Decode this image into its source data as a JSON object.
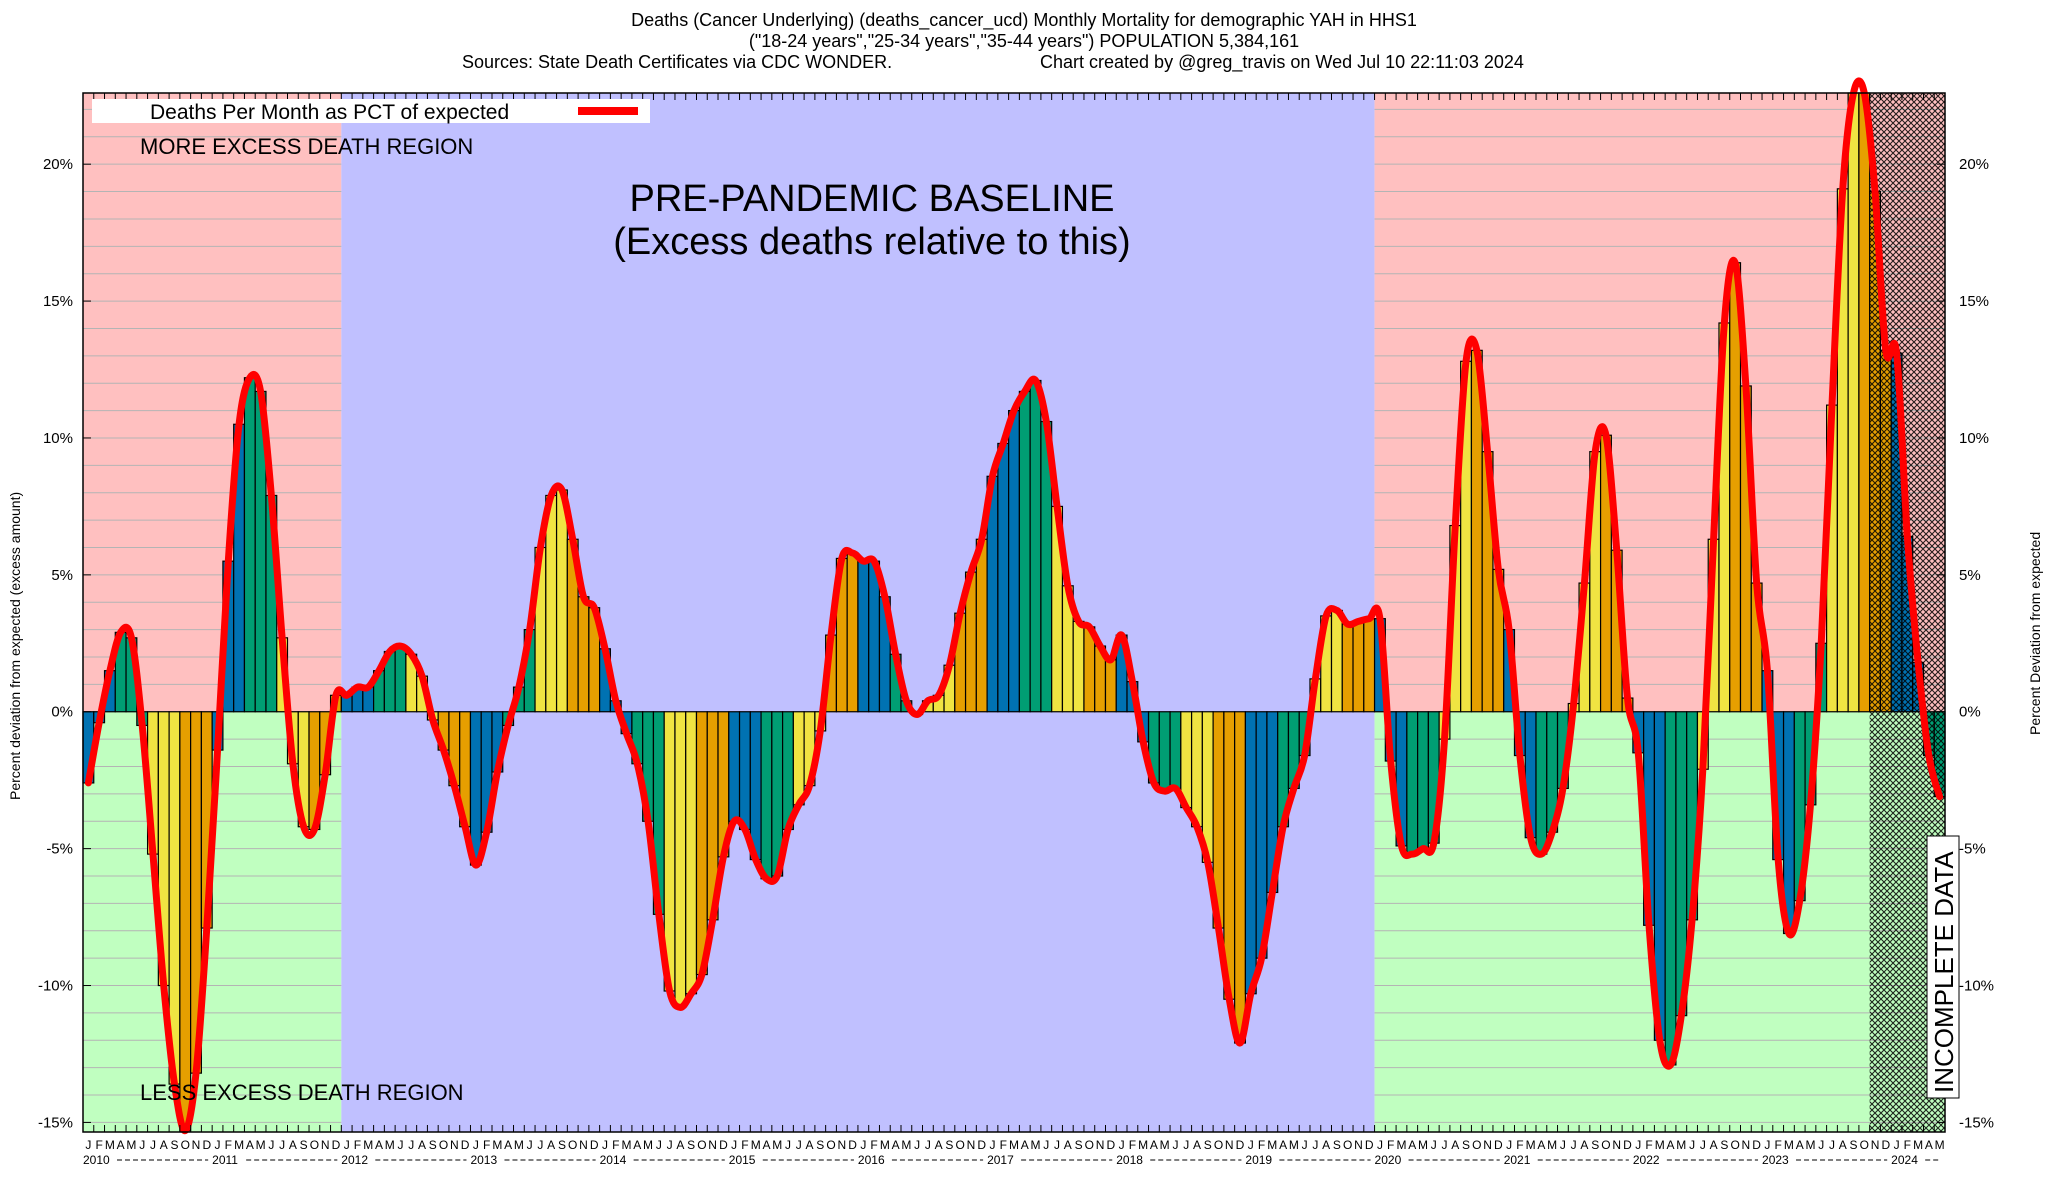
{
  "title": {
    "line1": "Deaths (Cancer Underlying) (deaths_cancer_ucd) Monthly Mortality for demographic YAH in HHS1",
    "line2": "(\"18-24 years\",\"25-34 years\",\"35-44 years\") POPULATION 5,384,161",
    "line3_left": "Sources: State Death Certificates via CDC WONDER.",
    "line3_right": "Chart created by @greg_travis on Wed Jul 10 22:11:03 2024"
  },
  "annotations": {
    "more_excess": "MORE EXCESS DEATH REGION",
    "less_excess": "LESS EXCESS DEATH REGION",
    "baseline_line1": "PRE-PANDEMIC BASELINE",
    "baseline_line2": "(Excess deaths relative to this)",
    "incomplete": "INCOMPLETE DATA"
  },
  "colors": {
    "more_region": "#ffc0c0",
    "less_region": "#c0ffc0",
    "baseline_region": "#c0c0ff",
    "line": "#ff0000",
    "winter": "#0072b2",
    "spring": "#009e73",
    "summer": "#f0e442",
    "autumn": "#e69f00",
    "grid": "#b4b4b4"
  },
  "chart_data": {
    "type": "bar",
    "title": "Deaths (Cancer Underlying) (deaths_cancer_ucd) Monthly Mortality for demographic YAH in HHS1",
    "ylabel_left": "Percent deviation from expected (excess amount)",
    "ylabel_right": "Percent Deviation from expected",
    "xlabel": "",
    "ylim": [
      -15.35,
      22.6
    ],
    "y_ticks": [
      -15,
      -10,
      -5,
      0,
      5,
      10,
      15,
      20
    ],
    "y_tick_labels": [
      "-15%",
      "-10%",
      "-5%",
      "0%",
      "5%",
      "10%",
      "15%",
      "20%"
    ],
    "grid": true,
    "legend": {
      "label": "Deaths Per Month as PCT of expected",
      "placement": "top-left"
    },
    "month_letters": [
      "J",
      "F",
      "M",
      "A",
      "M",
      "J",
      "J",
      "A",
      "S",
      "O",
      "N",
      "D"
    ],
    "years": [
      "2010",
      "2011",
      "2012",
      "2013",
      "2014",
      "2015",
      "2016",
      "2017",
      "2018",
      "2019",
      "2020",
      "2021",
      "2022",
      "2023",
      "2024"
    ],
    "start": "2010-01",
    "end": "2024-05",
    "baseline_period": [
      "2012-01",
      "2019-12"
    ],
    "incomplete_from": "2023-11",
    "series": [
      {
        "name": "Deaths Per Month as PCT of expected",
        "values": [
          -2.6,
          -0.4,
          1.5,
          2.9,
          2.7,
          -0.5,
          -5.2,
          -10.0,
          -13.6,
          -15.3,
          -13.2,
          -7.9,
          -1.4,
          5.5,
          10.5,
          12.2,
          11.7,
          7.9,
          2.7,
          -1.9,
          -4.2,
          -4.3,
          -2.3,
          0.6,
          0.6,
          0.9,
          0.9,
          1.5,
          2.2,
          2.4,
          2.1,
          1.3,
          -0.3,
          -1.4,
          -2.7,
          -4.2,
          -5.6,
          -4.4,
          -2.2,
          -0.5,
          0.9,
          3.0,
          6.0,
          7.9,
          8.1,
          6.3,
          4.2,
          3.8,
          2.3,
          0.4,
          -0.8,
          -1.9,
          -4.0,
          -7.4,
          -10.2,
          -10.8,
          -10.3,
          -9.6,
          -7.6,
          -5.3,
          -4.0,
          -4.3,
          -5.4,
          -6.1,
          -6.0,
          -4.3,
          -3.4,
          -2.7,
          -0.7,
          2.8,
          5.6,
          5.8,
          5.5,
          5.5,
          4.2,
          2.1,
          0.4,
          -0.1,
          0.4,
          0.6,
          1.7,
          3.6,
          5.1,
          6.3,
          8.6,
          9.8,
          11.0,
          11.7,
          12.1,
          10.6,
          7.5,
          4.6,
          3.3,
          3.1,
          2.4,
          1.9,
          2.8,
          1.1,
          -1.1,
          -2.6,
          -2.9,
          -2.8,
          -3.5,
          -4.2,
          -5.5,
          -7.9,
          -10.5,
          -12.1,
          -10.3,
          -9.0,
          -6.6,
          -4.2,
          -2.8,
          -1.6,
          1.2,
          3.5,
          3.7,
          3.2,
          3.3,
          3.4,
          3.4,
          -1.8,
          -4.9,
          -5.2,
          -5.0,
          -4.8,
          -1.0,
          6.8,
          12.8,
          13.2,
          9.5,
          5.2,
          3.0,
          -1.6,
          -4.6,
          -5.2,
          -4.4,
          -2.8,
          0.3,
          4.7,
          9.5,
          10.1,
          5.9,
          0.5,
          -1.5,
          -7.8,
          -12.0,
          -12.9,
          -11.1,
          -7.6,
          -2.1,
          6.3,
          14.2,
          16.4,
          11.9,
          4.7,
          1.5,
          -5.4,
          -8.1,
          -6.9,
          -3.4,
          2.5,
          11.2,
          19.1,
          22.6,
          22.6,
          19.0,
          13.2,
          13.1,
          6.4,
          1.8,
          -1.6,
          -3.1
        ]
      }
    ]
  }
}
